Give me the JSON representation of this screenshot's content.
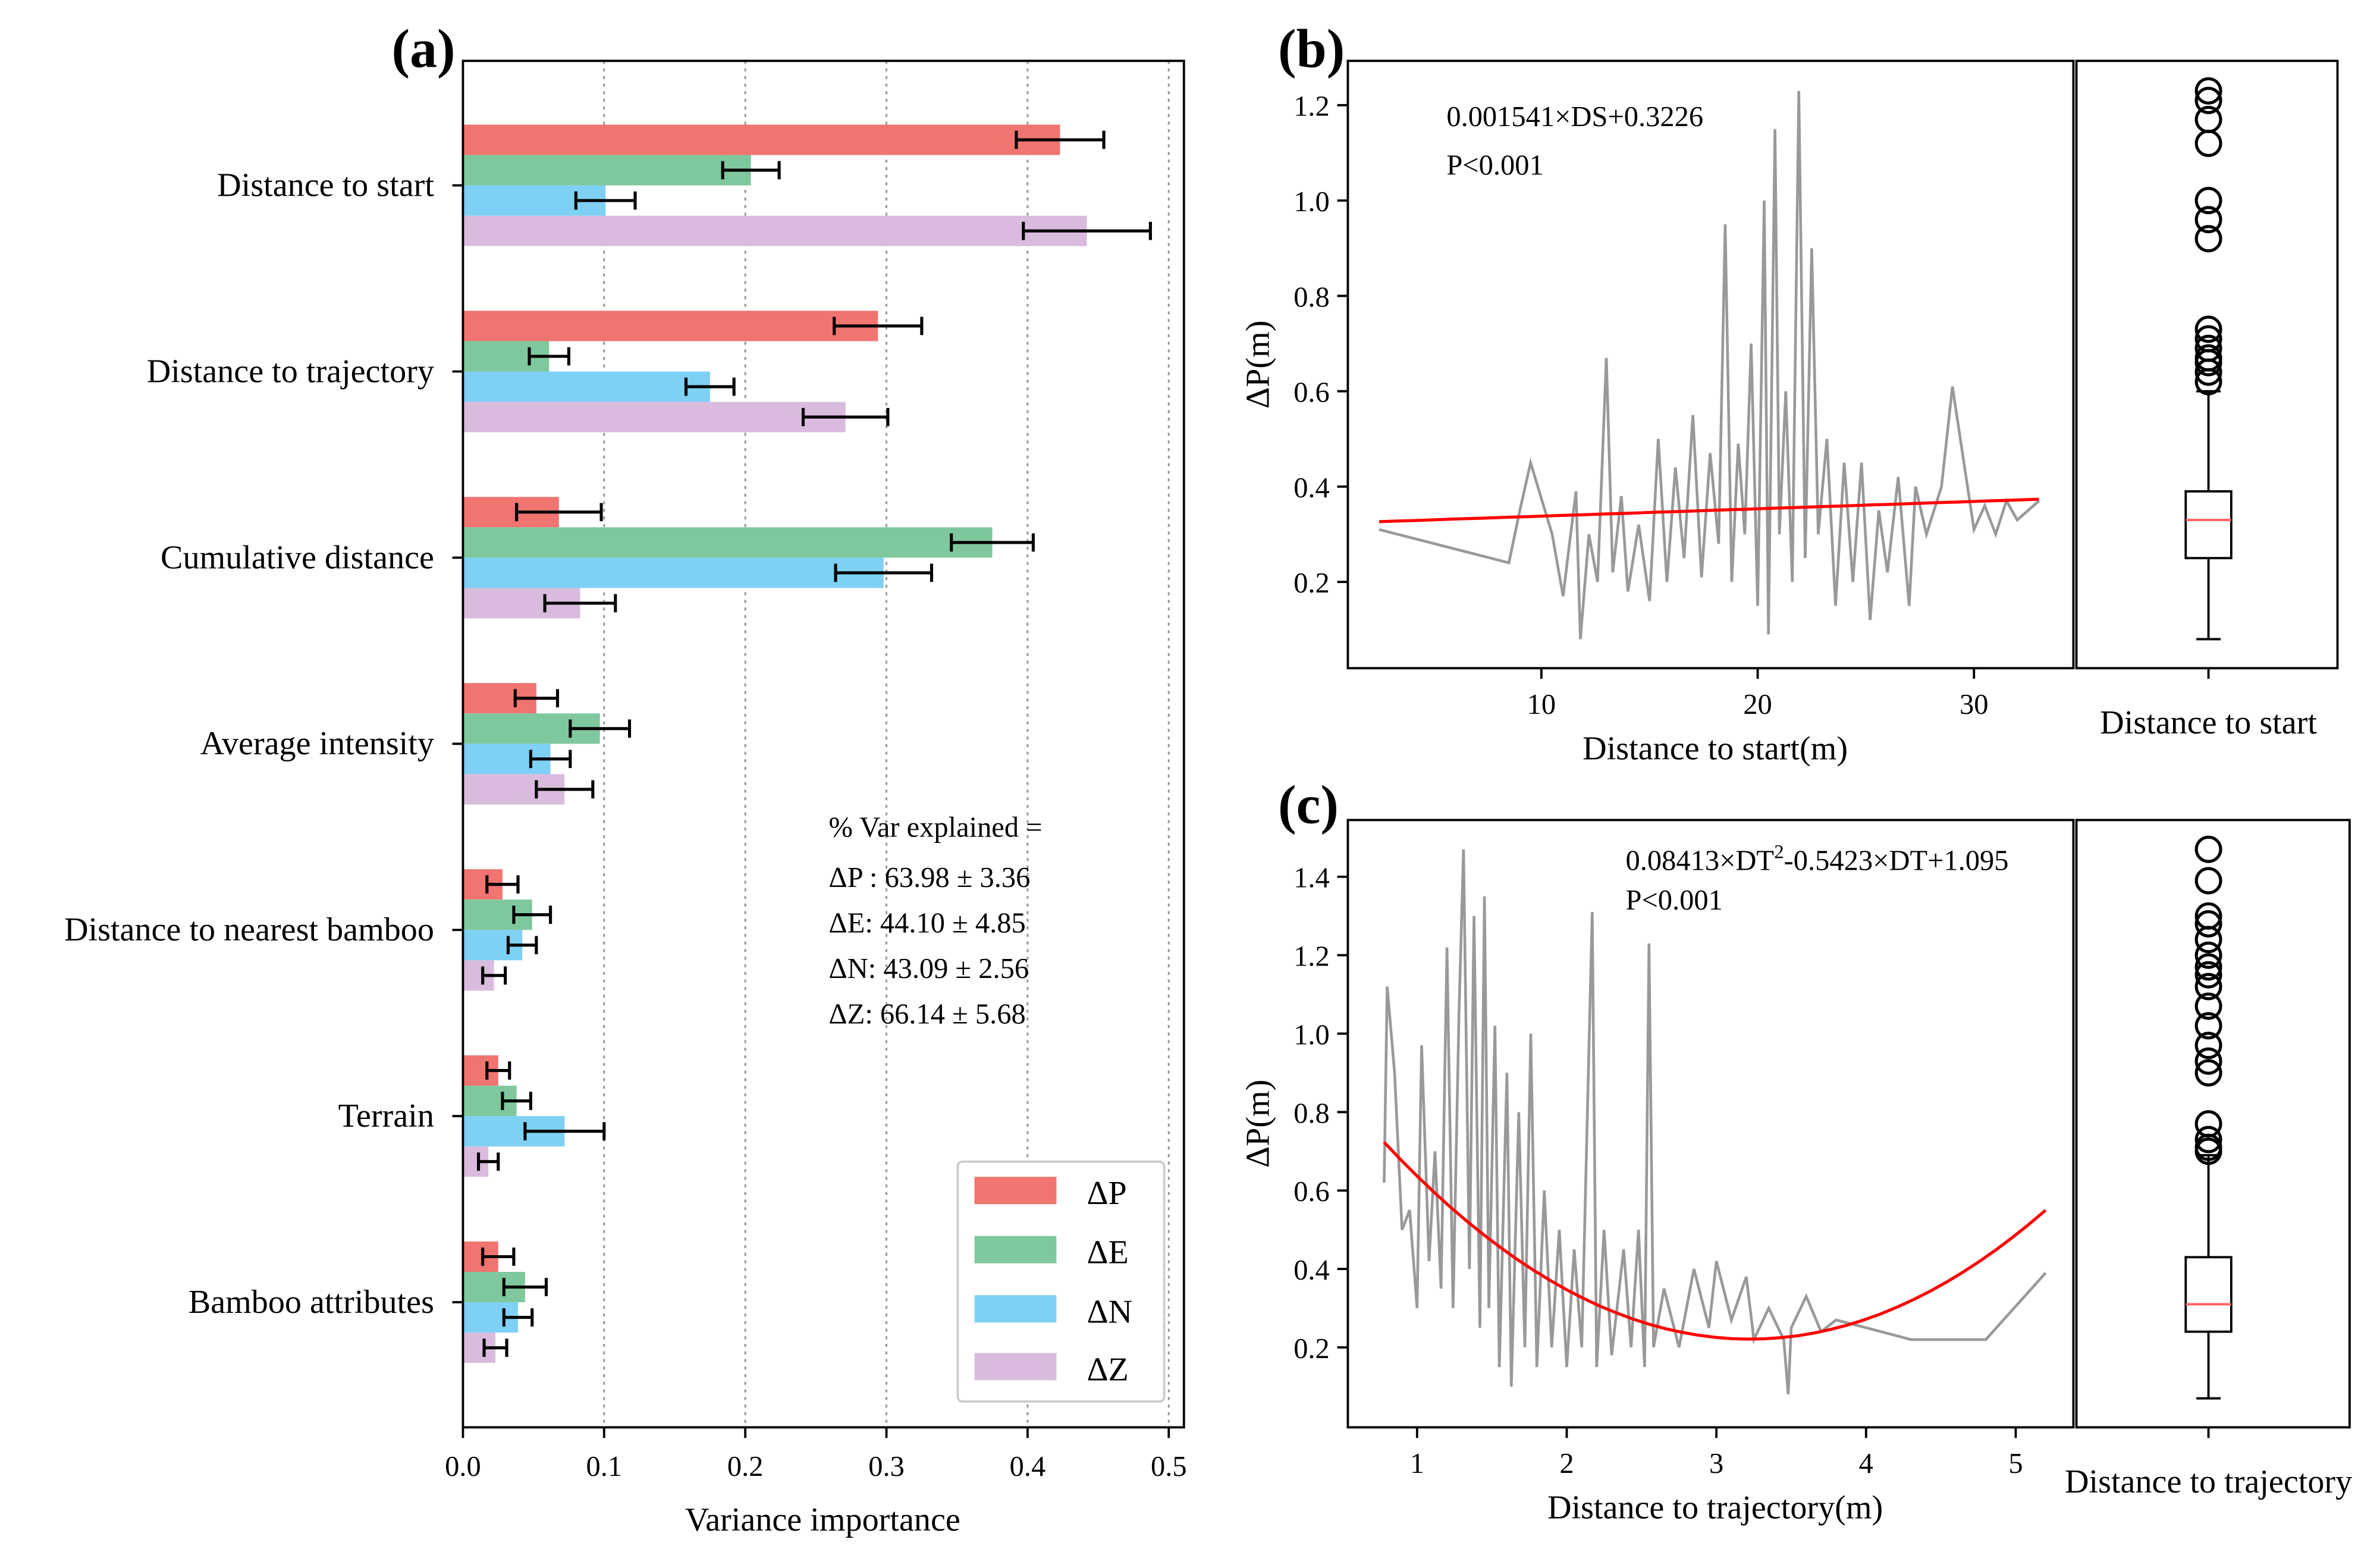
{
  "colors": {
    "dP": "#f07470",
    "dE": "#7fc89d",
    "dN": "#7fd0f5",
    "dZ": "#d9bcdd",
    "fit": "#ff0000",
    "raw": "#999999",
    "median": "#ff6060"
  },
  "chart_data": [
    {
      "id": "a",
      "type": "bar",
      "panel_label": "(a)",
      "orientation": "horizontal",
      "categories": [
        "Distance to start",
        "Distance to trajectory",
        "Cumulative distance",
        "Average intensity",
        "Distance to nearest bamboo",
        "Terrain",
        "Bamboo attributes"
      ],
      "series": [
        {
          "name": "ΔP",
          "color_key": "dP",
          "values": [
            0.423,
            0.294,
            0.068,
            0.052,
            0.028,
            0.025,
            0.025
          ],
          "errors": [
            0.031,
            0.031,
            0.03,
            0.015,
            0.011,
            0.008,
            0.011
          ]
        },
        {
          "name": "ΔE",
          "color_key": "dE",
          "values": [
            0.204,
            0.061,
            0.375,
            0.097,
            0.049,
            0.038,
            0.044
          ],
          "errors": [
            0.02,
            0.014,
            0.029,
            0.021,
            0.013,
            0.01,
            0.015
          ]
        },
        {
          "name": "ΔN",
          "color_key": "dN",
          "values": [
            0.101,
            0.175,
            0.298,
            0.062,
            0.042,
            0.072,
            0.039
          ],
          "errors": [
            0.021,
            0.017,
            0.034,
            0.014,
            0.01,
            0.028,
            0.01
          ]
        },
        {
          "name": "ΔZ",
          "color_key": "dZ",
          "values": [
            0.442,
            0.271,
            0.083,
            0.072,
            0.022,
            0.018,
            0.023
          ],
          "errors": [
            0.045,
            0.03,
            0.025,
            0.02,
            0.008,
            0.007,
            0.008
          ]
        }
      ],
      "xlabel": "Variance importance",
      "xlim": [
        0,
        0.51
      ],
      "xticks": [
        "0.0",
        "0.1",
        "0.2",
        "0.3",
        "0.4",
        "0.5"
      ],
      "grid": "vertical dotted",
      "legend": {
        "placement": "bottom-right",
        "entries": [
          "ΔP",
          "ΔE",
          "ΔN",
          "ΔZ"
        ]
      },
      "annotation": [
        "% Var explained =",
        "ΔP : 63.98 ± 3.36",
        "ΔE: 44.10 ± 4.85",
        "ΔN: 43.09 ± 2.56",
        "ΔZ: 66.14 ± 5.68"
      ]
    },
    {
      "id": "b",
      "type": "line",
      "panel_label": "(b)",
      "xlabel": "Distance to start(m)",
      "ylabel": "ΔP(m)",
      "xlim": [
        0,
        33.5
      ],
      "ylim": [
        0,
        1.28
      ],
      "xticks": [
        "10",
        "20",
        "30"
      ],
      "yticks": [
        "0.2",
        "0.4",
        "0.6",
        "0.8",
        "1.0",
        "1.2"
      ],
      "equation": "0.001541×DS+0.3226",
      "p_value": "P<0.001",
      "fit": {
        "slope": 0.001541,
        "intercept": 0.3226,
        "x_range": [
          2.5,
          33
        ]
      },
      "raw_series": [
        [
          2.5,
          0.31
        ],
        [
          8.5,
          0.24
        ],
        [
          9,
          0.35
        ],
        [
          9.5,
          0.45
        ],
        [
          10.5,
          0.3
        ],
        [
          11,
          0.17
        ],
        [
          11.3,
          0.28
        ],
        [
          11.6,
          0.39
        ],
        [
          11.8,
          0.08
        ],
        [
          12.2,
          0.3
        ],
        [
          12.6,
          0.2
        ],
        [
          13,
          0.67
        ],
        [
          13.3,
          0.22
        ],
        [
          13.7,
          0.38
        ],
        [
          14,
          0.18
        ],
        [
          14.5,
          0.32
        ],
        [
          15,
          0.16
        ],
        [
          15.4,
          0.5
        ],
        [
          15.8,
          0.2
        ],
        [
          16.2,
          0.44
        ],
        [
          16.6,
          0.25
        ],
        [
          17,
          0.55
        ],
        [
          17.4,
          0.21
        ],
        [
          17.8,
          0.47
        ],
        [
          18.2,
          0.28
        ],
        [
          18.5,
          0.95
        ],
        [
          18.8,
          0.2
        ],
        [
          19.1,
          0.49
        ],
        [
          19.4,
          0.3
        ],
        [
          19.7,
          0.7
        ],
        [
          20,
          0.15
        ],
        [
          20.3,
          1.0
        ],
        [
          20.5,
          0.09
        ],
        [
          20.8,
          1.15
        ],
        [
          21,
          0.3
        ],
        [
          21.3,
          0.6
        ],
        [
          21.6,
          0.2
        ],
        [
          21.9,
          1.23
        ],
        [
          22.2,
          0.25
        ],
        [
          22.5,
          0.9
        ],
        [
          22.8,
          0.3
        ],
        [
          23.2,
          0.5
        ],
        [
          23.6,
          0.15
        ],
        [
          24,
          0.45
        ],
        [
          24.4,
          0.2
        ],
        [
          24.8,
          0.45
        ],
        [
          25.2,
          0.12
        ],
        [
          25.6,
          0.35
        ],
        [
          26,
          0.22
        ],
        [
          26.5,
          0.42
        ],
        [
          27,
          0.15
        ],
        [
          27.3,
          0.4
        ],
        [
          27.8,
          0.3
        ],
        [
          28.5,
          0.4
        ],
        [
          29,
          0.61
        ],
        [
          30,
          0.31
        ],
        [
          30.5,
          0.36
        ],
        [
          31,
          0.3
        ],
        [
          31.5,
          0.37
        ],
        [
          32,
          0.33
        ],
        [
          33,
          0.37
        ]
      ],
      "boxplot": {
        "label": "Distance to start",
        "whisker_low": 0.08,
        "q1": 0.25,
        "median": 0.33,
        "q3": 0.39,
        "whisker_high": 0.6,
        "outliers": [
          1.23,
          1.21,
          1.17,
          1.12,
          1.0,
          0.96,
          0.92,
          0.73,
          0.71,
          0.69,
          0.67,
          0.66,
          0.64,
          0.62
        ]
      }
    },
    {
      "id": "c",
      "type": "line",
      "panel_label": "(c)",
      "xlabel": "Distance to trajectory(m)",
      "ylabel": "ΔP(m)",
      "xlim": [
        0.55,
        5.35
      ],
      "ylim": [
        0,
        1.55
      ],
      "xticks": [
        "1",
        "2",
        "3",
        "4",
        "5"
      ],
      "yticks": [
        "0.2",
        "0.4",
        "0.6",
        "0.8",
        "1.0",
        "1.2",
        "1.4"
      ],
      "equation_parts": [
        "0.08413×DT",
        "2",
        "-0.5423×DT+1.095"
      ],
      "p_value": "P<0.001",
      "fit": {
        "a": 0.08413,
        "b": -0.5423,
        "c": 1.095,
        "x_range": [
          0.78,
          5.2
        ]
      },
      "raw_series": [
        [
          0.78,
          0.62
        ],
        [
          0.8,
          1.12
        ],
        [
          0.85,
          0.9
        ],
        [
          0.9,
          0.5
        ],
        [
          0.95,
          0.55
        ],
        [
          1.0,
          0.3
        ],
        [
          1.03,
          0.97
        ],
        [
          1.08,
          0.42
        ],
        [
          1.12,
          0.7
        ],
        [
          1.16,
          0.35
        ],
        [
          1.2,
          1.22
        ],
        [
          1.24,
          0.3
        ],
        [
          1.28,
          1.05
        ],
        [
          1.31,
          1.47
        ],
        [
          1.35,
          0.4
        ],
        [
          1.38,
          1.3
        ],
        [
          1.42,
          0.25
        ],
        [
          1.45,
          1.35
        ],
        [
          1.48,
          0.3
        ],
        [
          1.52,
          1.02
        ],
        [
          1.55,
          0.15
        ],
        [
          1.6,
          0.9
        ],
        [
          1.63,
          0.1
        ],
        [
          1.68,
          0.8
        ],
        [
          1.72,
          0.2
        ],
        [
          1.76,
          1.0
        ],
        [
          1.8,
          0.15
        ],
        [
          1.85,
          0.6
        ],
        [
          1.9,
          0.2
        ],
        [
          1.95,
          0.5
        ],
        [
          2.0,
          0.15
        ],
        [
          2.05,
          0.45
        ],
        [
          2.1,
          0.2
        ],
        [
          2.17,
          1.31
        ],
        [
          2.2,
          0.15
        ],
        [
          2.25,
          0.5
        ],
        [
          2.3,
          0.18
        ],
        [
          2.38,
          0.45
        ],
        [
          2.43,
          0.2
        ],
        [
          2.48,
          0.5
        ],
        [
          2.52,
          0.15
        ],
        [
          2.55,
          1.23
        ],
        [
          2.58,
          0.2
        ],
        [
          2.65,
          0.35
        ],
        [
          2.75,
          0.2
        ],
        [
          2.85,
          0.4
        ],
        [
          2.95,
          0.25
        ],
        [
          3.0,
          0.42
        ],
        [
          3.1,
          0.27
        ],
        [
          3.2,
          0.38
        ],
        [
          3.25,
          0.22
        ],
        [
          3.35,
          0.3
        ],
        [
          3.45,
          0.22
        ],
        [
          3.48,
          0.08
        ],
        [
          3.5,
          0.25
        ],
        [
          3.6,
          0.33
        ],
        [
          3.7,
          0.24
        ],
        [
          3.8,
          0.27
        ],
        [
          4.0,
          0.25
        ],
        [
          4.3,
          0.22
        ],
        [
          4.8,
          0.22
        ],
        [
          5.2,
          0.39
        ]
      ],
      "boxplot": {
        "label": "Distance to trajectory",
        "whisker_low": 0.07,
        "q1": 0.24,
        "median": 0.31,
        "q3": 0.43,
        "whisker_high": 0.69,
        "outliers": [
          1.47,
          1.39,
          1.3,
          1.28,
          1.24,
          1.2,
          1.17,
          1.15,
          1.12,
          1.07,
          1.02,
          0.97,
          0.93,
          0.9,
          0.77,
          0.73,
          0.71,
          0.7
        ]
      }
    }
  ]
}
